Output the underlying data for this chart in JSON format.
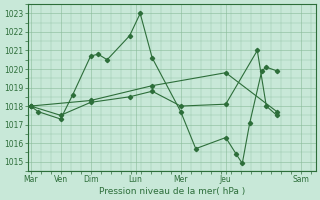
{
  "xlabel": "Pression niveau de la mer( hPa )",
  "bg_color": "#c8e8d8",
  "grid_color": "#88bb99",
  "line_color": "#2d6e3a",
  "ylim": [
    1014.5,
    1023.5
  ],
  "yticks": [
    1015,
    1016,
    1017,
    1018,
    1019,
    1020,
    1021,
    1022,
    1023
  ],
  "day_labels": [
    "Mar",
    "Ven",
    "Dim",
    "Lun",
    "Mer",
    "Jeu",
    "Sam"
  ],
  "day_x": [
    0,
    1,
    2,
    3.5,
    5,
    6.5,
    9
  ],
  "series1_x": [
    0,
    0.25,
    1.0,
    1.4,
    2.0,
    2.25,
    2.55,
    3.3,
    3.65,
    4.05,
    5.0,
    5.5,
    6.5,
    6.85,
    7.05,
    7.3,
    7.7,
    7.85,
    8.2
  ],
  "series1_y": [
    1018.0,
    1017.7,
    1017.3,
    1018.6,
    1020.7,
    1020.8,
    1020.5,
    1021.8,
    1023.0,
    1020.6,
    1017.7,
    1015.7,
    1016.3,
    1015.4,
    1014.9,
    1017.1,
    1019.9,
    1020.1,
    1019.9
  ],
  "series2_x": [
    0,
    1.0,
    2.0,
    3.3,
    4.05,
    5.0,
    6.5,
    7.55,
    7.85,
    8.2
  ],
  "series2_y": [
    1018.0,
    1017.5,
    1018.2,
    1018.5,
    1018.8,
    1018.0,
    1018.1,
    1021.0,
    1018.0,
    1017.5
  ],
  "series3_x": [
    0,
    2.0,
    4.05,
    6.5,
    8.2
  ],
  "series3_y": [
    1018.0,
    1018.3,
    1019.1,
    1019.8,
    1017.7
  ],
  "xlim": [
    -0.1,
    9.5
  ],
  "xlabel_fontsize": 6.5,
  "tick_fontsize": 5.5
}
